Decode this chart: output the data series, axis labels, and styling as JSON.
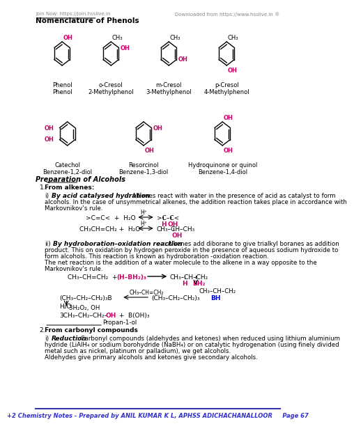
{
  "bg_color": "#ffffff",
  "header_left": "Join Now: https://join.hsslive.in",
  "header_right": "Downloaded from https://www.hsslive.in ®",
  "title": "Nomenclature of Phenols",
  "footer": "+2 Chemistry Notes - Prepared by ANIL KUMAR K L, APHSS ADICHACHANALLOOR     Page 67",
  "footer_color": "#3333cc",
  "pink": "#cc0066",
  "blue": "#0000cc",
  "black": "#000000",
  "gray": "#555555"
}
